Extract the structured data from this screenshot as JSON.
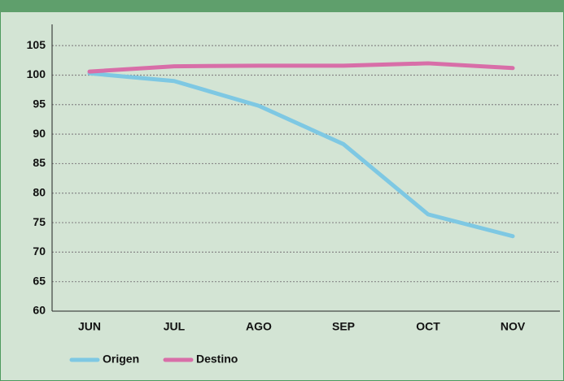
{
  "chart_data": {
    "type": "line",
    "categories": [
      "JUN",
      "JUL",
      "AGO",
      "SEP",
      "OCT",
      "NOV"
    ],
    "series": [
      {
        "name": "Origen",
        "color": "#7ec8e3",
        "values": [
          100.3,
          99.0,
          94.8,
          88.3,
          76.4,
          72.7
        ]
      },
      {
        "name": "Destino",
        "color": "#d86ea8",
        "values": [
          100.6,
          101.5,
          101.6,
          101.6,
          102.0,
          101.2
        ]
      }
    ],
    "ylim": [
      60,
      108.6
    ],
    "yticks": [
      60,
      65,
      70,
      75,
      80,
      85,
      90,
      95,
      100,
      105
    ],
    "grid": true
  }
}
